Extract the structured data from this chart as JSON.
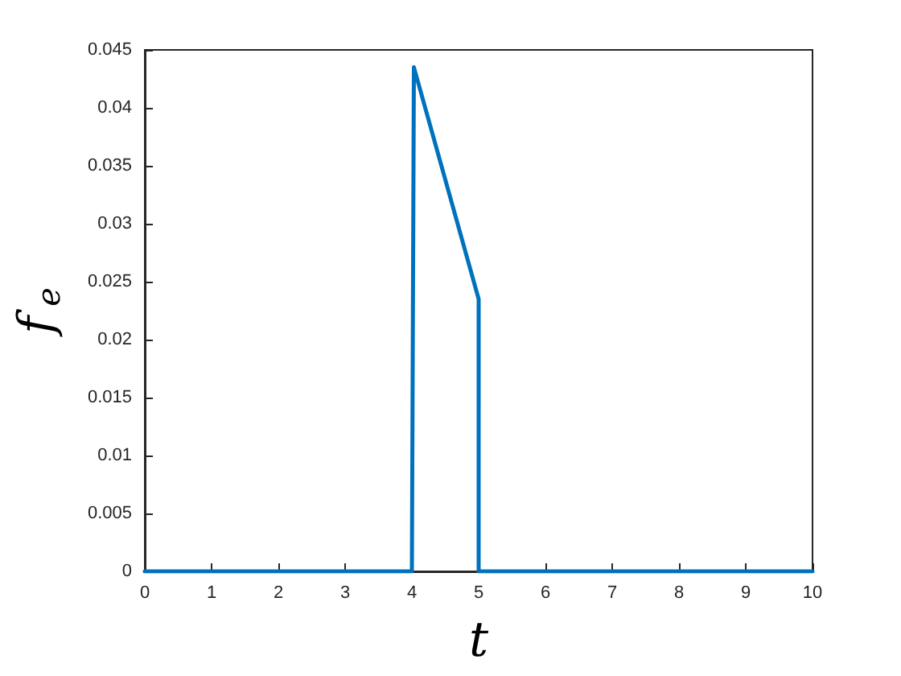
{
  "chart_data": {
    "type": "line",
    "xlabel": "t",
    "ylabel": "f$_{e}$",
    "series": [
      {
        "color": "#0072bd",
        "x": [
          0,
          4,
          4.03,
          5,
          5,
          10
        ],
        "values": [
          0,
          0,
          0.0435,
          0.0235,
          0,
          0
        ]
      }
    ],
    "xlim": [
      0,
      10
    ],
    "xticks": [
      0,
      1,
      2,
      3,
      4,
      5,
      6,
      7,
      8,
      9,
      10
    ],
    "ylim": [
      0,
      0.045
    ],
    "yticks": [
      0,
      0.005,
      0.01,
      0.015,
      0.02,
      0.025,
      0.03,
      0.035,
      0.04,
      0.045
    ],
    "grid": false,
    "marker": "none",
    "line_style": "solid"
  }
}
